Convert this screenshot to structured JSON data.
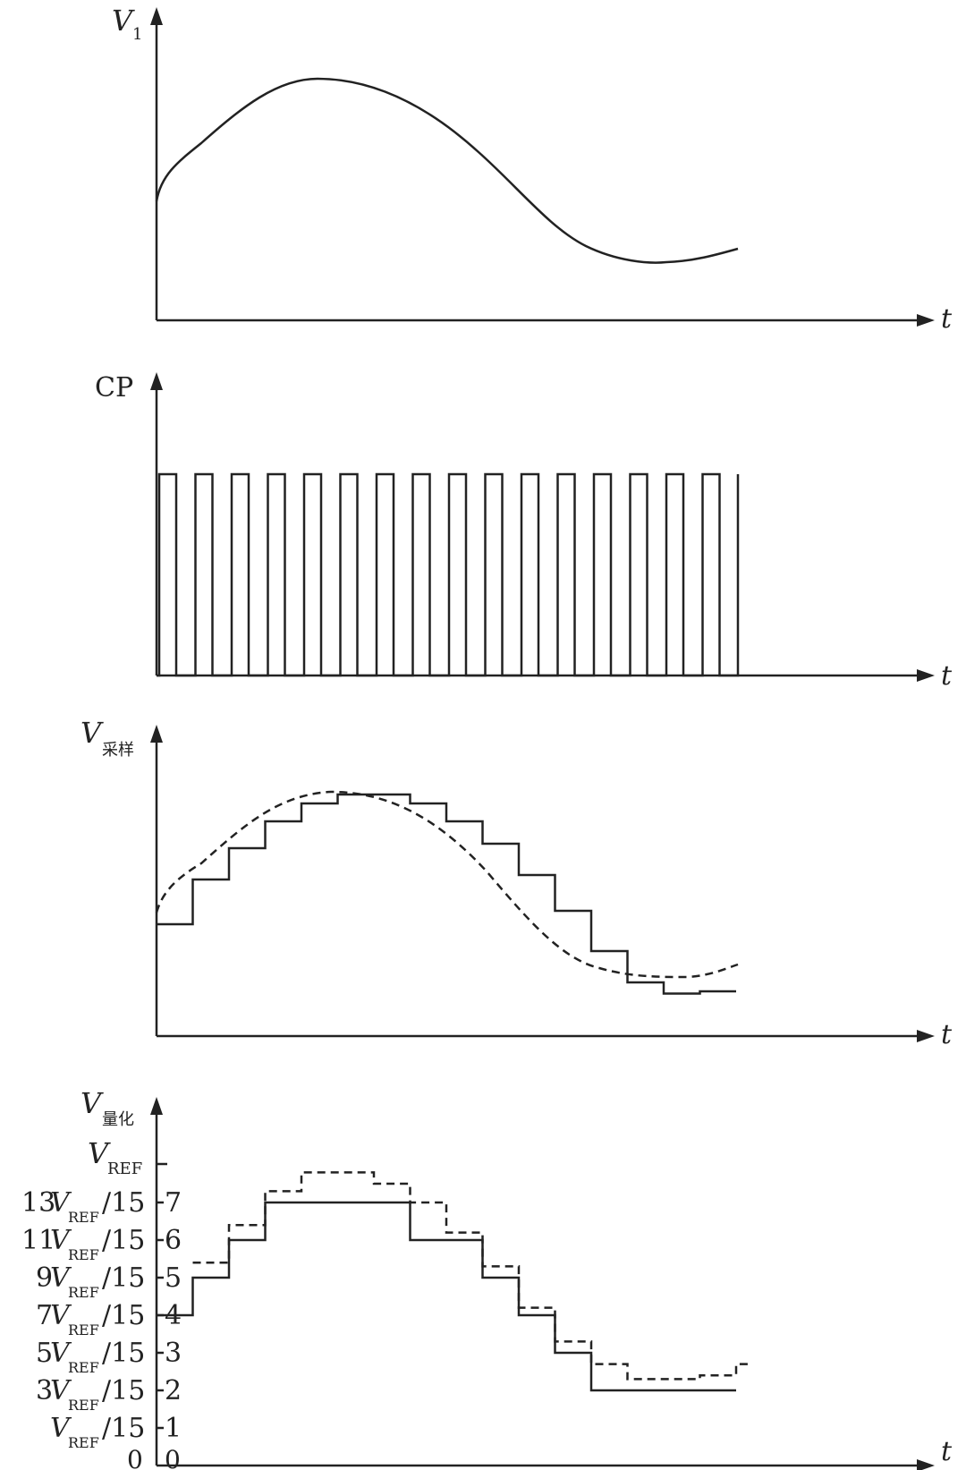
{
  "panel1": {
    "ylabel": "V",
    "ylabel_sub": "1",
    "xlabel": "t"
  },
  "panel2": {
    "ylabel": "CP",
    "xlabel": "t",
    "pulse_count": 16
  },
  "panel3": {
    "ylabel": "V",
    "ylabel_sub": "采样",
    "xlabel": "t"
  },
  "panel4": {
    "ylabel": "V",
    "ylabel_sub": "量化",
    "xlabel": "t",
    "vref_top": {
      "main": "V",
      "sub": "REF"
    },
    "levels": [
      {
        "coef": "13",
        "v": "V",
        "sub": "REF",
        "den": "/15",
        "code": "7"
      },
      {
        "coef": "11",
        "v": "V",
        "sub": "REF",
        "den": "/15",
        "code": "6"
      },
      {
        "coef": "9",
        "v": "V",
        "sub": "REF",
        "den": "/15",
        "code": "5"
      },
      {
        "coef": "7",
        "v": "V",
        "sub": "REF",
        "den": "/15",
        "code": "4"
      },
      {
        "coef": "5",
        "v": "V",
        "sub": "REF",
        "den": "/15",
        "code": "3"
      },
      {
        "coef": "3",
        "v": "V",
        "sub": "REF",
        "den": "/15",
        "code": "2"
      },
      {
        "coef": "",
        "v": "V",
        "sub": "REF",
        "den": "/15",
        "code": "1"
      }
    ],
    "zero_left": "0",
    "zero_right": "0"
  },
  "chart_data": {
    "type": "line",
    "samples": 16,
    "sampled_steps": [
      0.5,
      0.7,
      0.84,
      0.96,
      1.04,
      1.08,
      1.08,
      1.04,
      0.96,
      0.86,
      0.72,
      0.56,
      0.38,
      0.24,
      0.19,
      0.2
    ],
    "quantized_codes": [
      4,
      5,
      6,
      7,
      7,
      7,
      7,
      6,
      6,
      5,
      4,
      3,
      2,
      2,
      2,
      2
    ],
    "quantized_dashed": [
      5.4,
      6.4,
      7.3,
      7.8,
      7.8,
      7.5,
      7.0,
      6.2,
      5.3,
      4.2,
      3.3,
      2.7,
      2.3,
      2.3,
      2.4,
      2.7
    ]
  }
}
